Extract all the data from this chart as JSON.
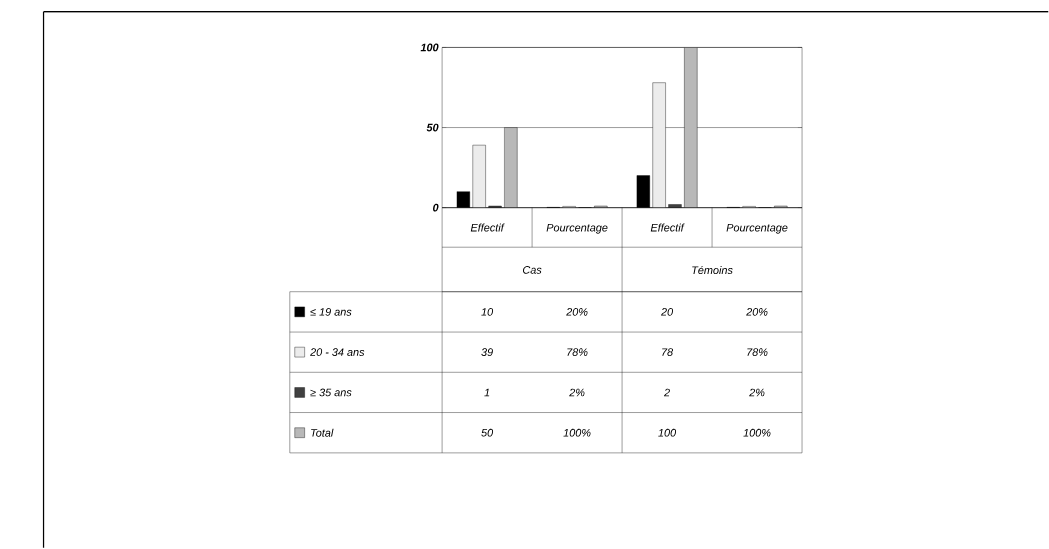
{
  "chart_data": {
    "type": "bar",
    "categories": [
      "Effectif",
      "Pourcentage",
      "Effectif",
      "Pourcentage"
    ],
    "annotations": [
      "Cas",
      "Témoins"
    ],
    "series": [
      {
        "name": "≤ 19 ans",
        "color": "#000000",
        "values": [
          10,
          0.2,
          20,
          0.2
        ],
        "value_labels": [
          "10",
          "20%",
          "20",
          "20%"
        ]
      },
      {
        "name": "20 - 34 ans",
        "color": "#ececec",
        "values": [
          39,
          0.78,
          78,
          0.78
        ],
        "value_labels": [
          "39",
          "78%",
          "78",
          "78%"
        ]
      },
      {
        "name": "≥ 35 ans",
        "color": "#404040",
        "values": [
          1,
          0.02,
          2,
          0.02
        ],
        "value_labels": [
          "1",
          "2%",
          "2",
          "2%"
        ]
      },
      {
        "name": "Total",
        "color": "#b8b8b8",
        "values": [
          50,
          1,
          100,
          1
        ],
        "value_labels": [
          "50",
          "100%",
          "100",
          "100%"
        ]
      }
    ],
    "ylim": [
      0,
      100
    ],
    "yticks": [
      0,
      50,
      100
    ],
    "grid": "y",
    "legend": "left"
  }
}
